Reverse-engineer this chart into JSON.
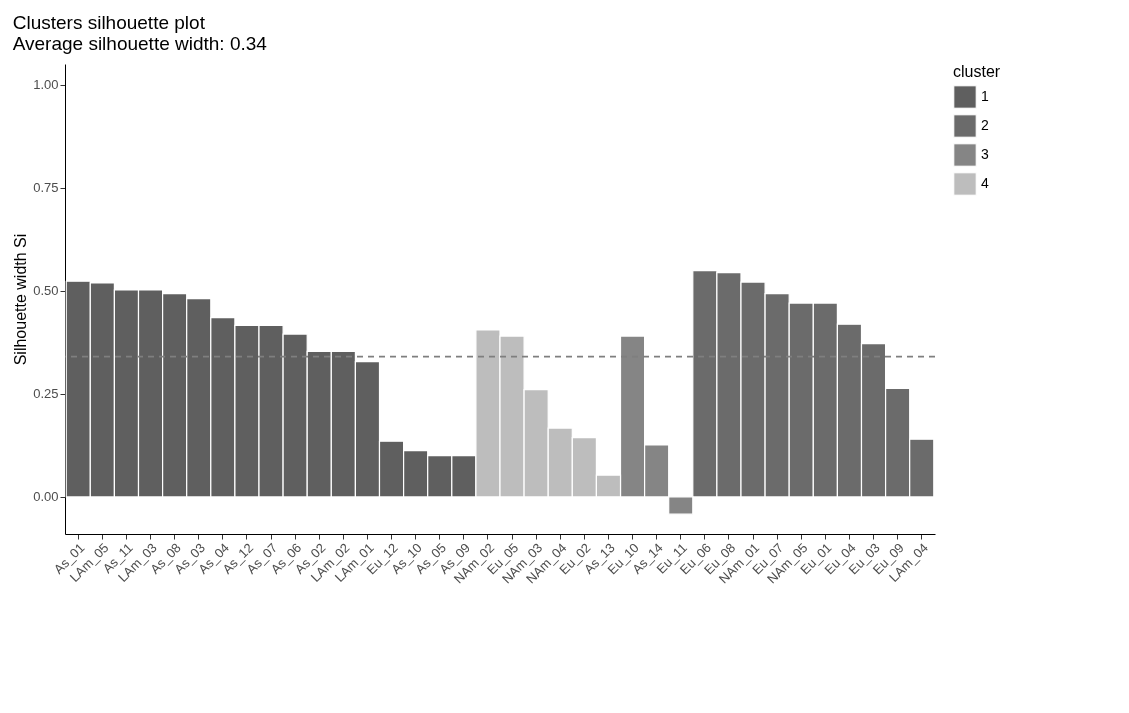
{
  "chart_data": {
    "type": "bar",
    "title": "Clusters silhouette plot",
    "subtitle": " Average silhouette width: 0.34",
    "ylabel": "Silhouette width Si",
    "legend_title": "cluster",
    "legend": "right",
    "grid": false,
    "categories": [
      "As_01",
      "LAm_05",
      "As_11",
      "LAm_03",
      "As_08",
      "As_03",
      "As_04",
      "As_12",
      "As_07",
      "As_06",
      "As_02",
      "LAm_02",
      "LAm_01",
      "Eu_12",
      "As_10",
      "As_05",
      "As_09",
      "NAm_02",
      "Eu_05",
      "NAm_03",
      "NAm_04",
      "Eu_02",
      "As_13",
      "Eu_10",
      "As_14",
      "Eu_11",
      "Eu_06",
      "Eu_08",
      "NAm_01",
      "Eu_07",
      "NAm_05",
      "Eu_01",
      "Eu_04",
      "Eu_03",
      "Eu_09",
      "LAm_04"
    ],
    "series": [
      {
        "name": "1",
        "color": "#5f5f5f",
        "values": [
          0.523,
          0.519,
          0.502,
          0.502,
          0.493,
          0.481,
          0.435,
          0.416,
          0.416,
          0.395,
          0.353,
          0.353,
          0.328,
          0.135,
          0.112,
          0.1,
          0.1,
          null,
          null,
          null,
          null,
          null,
          null,
          null,
          null,
          null,
          null,
          null,
          null,
          null,
          null,
          null,
          null,
          null,
          null,
          null
        ]
      },
      {
        "name": "2",
        "color": "#6b6b6b",
        "values": [
          null,
          null,
          null,
          null,
          null,
          null,
          null,
          null,
          null,
          null,
          null,
          null,
          null,
          null,
          null,
          null,
          null,
          null,
          null,
          null,
          null,
          null,
          null,
          null,
          null,
          null,
          0.549,
          0.544,
          0.521,
          0.493,
          0.47,
          0.47,
          0.419,
          0.372,
          0.263,
          0.14
        ]
      },
      {
        "name": "3",
        "color": "#858585",
        "values": [
          null,
          null,
          null,
          null,
          null,
          null,
          null,
          null,
          null,
          null,
          null,
          null,
          null,
          null,
          null,
          null,
          null,
          null,
          null,
          null,
          null,
          null,
          null,
          0.39,
          0.126,
          -0.042,
          null,
          null,
          null,
          null,
          null,
          null,
          null,
          null,
          null,
          null
        ]
      },
      {
        "name": "4",
        "color": "#bdbdbd",
        "values": [
          null,
          null,
          null,
          null,
          null,
          null,
          null,
          null,
          null,
          null,
          null,
          null,
          null,
          null,
          null,
          null,
          null,
          0.405,
          0.39,
          0.26,
          0.167,
          0.144,
          0.053,
          null,
          null,
          null,
          null,
          null,
          null,
          null,
          null,
          null,
          null,
          null,
          null,
          null
        ]
      }
    ],
    "ylim": [
      -0.09,
      1.05
    ],
    "yticks": [
      {
        "value": 0,
        "label": "0.00"
      },
      {
        "value": 0.25,
        "label": "0.25"
      },
      {
        "value": 0.5,
        "label": "0.50"
      },
      {
        "value": 0.75,
        "label": "0.75"
      },
      {
        "value": 1,
        "label": "1.00"
      }
    ],
    "ref_lines": [
      {
        "axis": "y",
        "value": 0.34,
        "color": "#7f7f7f",
        "line_style": "dashed"
      }
    ]
  }
}
